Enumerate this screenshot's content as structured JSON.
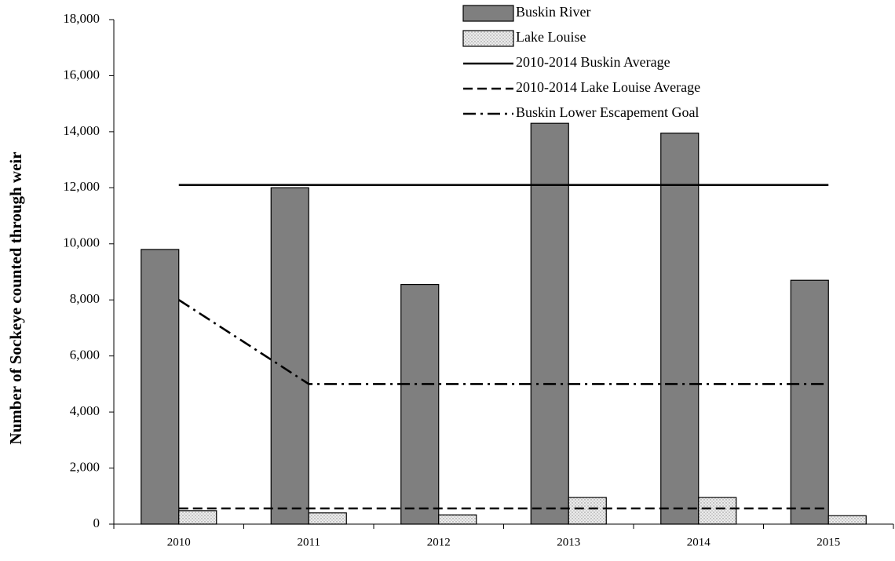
{
  "chart_data": {
    "type": "bar",
    "y_axis_label": "Number of Sockeye counted through weir",
    "categories": [
      "2010",
      "2011",
      "2012",
      "2013",
      "2014",
      "2015"
    ],
    "ylim": [
      0,
      18000
    ],
    "yticks": [
      0,
      {
        "value": 2000,
        "label": "2,000"
      },
      {
        "value": 4000,
        "label": "4,000"
      },
      {
        "value": 6000,
        "label": "6,000"
      },
      {
        "value": 8000,
        "label": "8,000"
      },
      {
        "value": 10000,
        "label": "10,000"
      },
      {
        "value": 12000,
        "label": "12,000"
      },
      {
        "value": 14000,
        "label": "14,000"
      },
      {
        "value": 16000,
        "label": "16,000"
      },
      {
        "value": 18000,
        "label": "18,000"
      }
    ],
    "legend": "top",
    "series": [
      {
        "name": "Buskin River",
        "type": "bar",
        "color": "#7f7f7f",
        "values": [
          9800,
          12000,
          8550,
          14300,
          13950,
          8700
        ]
      },
      {
        "name": "Lake Louise",
        "type": "bar",
        "color": "#e8e8e8",
        "pattern": "dotted",
        "values": [
          480,
          400,
          330,
          950,
          950,
          300
        ]
      },
      {
        "name": "2010-2014 Buskin Average",
        "type": "line",
        "color": "#000000",
        "style": "solid",
        "values": [
          12100,
          12100,
          12100,
          12100,
          12100,
          12100
        ]
      },
      {
        "name": "2010-2014 Lake Louise Average",
        "type": "line",
        "color": "#000000",
        "style": "dashed",
        "values": [
          560,
          560,
          560,
          560,
          560,
          560
        ]
      },
      {
        "name": "Buskin Lower Escapement Goal",
        "type": "line",
        "color": "#000000",
        "style": "dashdot",
        "values": [
          8000,
          5000,
          5000,
          5000,
          5000,
          5000
        ]
      }
    ]
  }
}
